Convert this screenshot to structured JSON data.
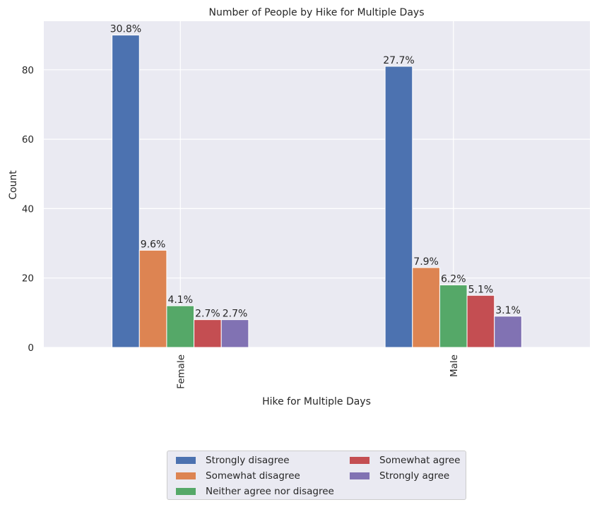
{
  "chart_data": {
    "type": "bar",
    "title": "Number of People by Hike for Multiple Days",
    "xlabel": "Hike for Multiple Days",
    "ylabel": "Count",
    "categories": [
      "Female",
      "Male"
    ],
    "ylim": [
      0,
      94
    ],
    "yticks": [
      0,
      20,
      40,
      60,
      80
    ],
    "grid": true,
    "legend_position": "bottom-center",
    "series": [
      {
        "name": "Strongly disagree",
        "color": "#4c72b0",
        "values": [
          90,
          81
        ],
        "labels": [
          "30.8%",
          "27.7%"
        ]
      },
      {
        "name": "Somewhat disagree",
        "color": "#dd8452",
        "values": [
          28,
          23
        ],
        "labels": [
          "9.6%",
          "7.9%"
        ]
      },
      {
        "name": "Neither agree nor disagree",
        "color": "#55a868",
        "values": [
          12,
          18
        ],
        "labels": [
          "4.1%",
          "6.2%"
        ]
      },
      {
        "name": "Somewhat agree",
        "color": "#c44e52",
        "values": [
          8,
          15
        ],
        "labels": [
          "2.7%",
          "5.1%"
        ]
      },
      {
        "name": "Strongly agree",
        "color": "#8172b3",
        "values": [
          8,
          9
        ],
        "labels": [
          "2.7%",
          "3.1%"
        ]
      }
    ]
  }
}
